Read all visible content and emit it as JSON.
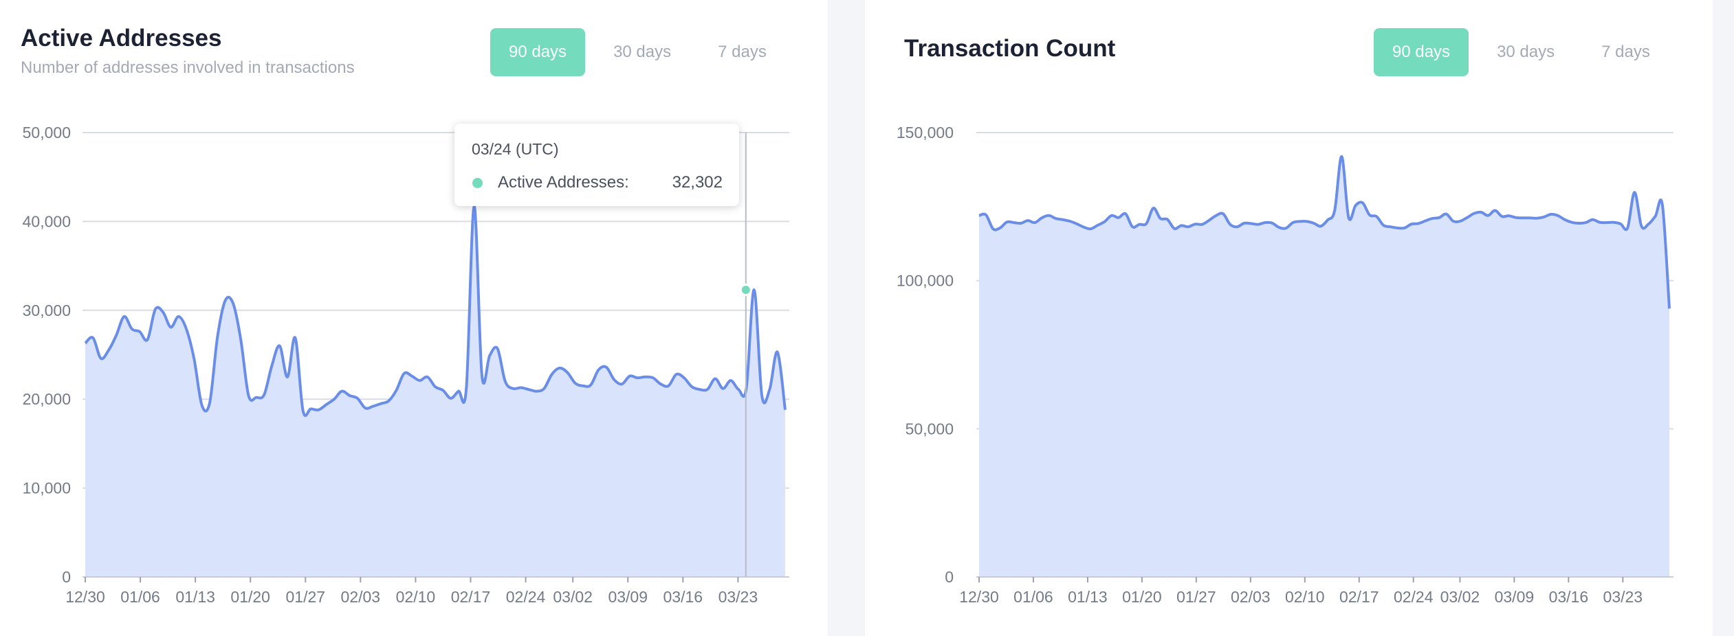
{
  "charts": {
    "active_addresses": {
      "title": "Active Addresses",
      "subtitle": "Number of addresses involved in transactions",
      "tooltip": {
        "date": "03/24 (UTC)",
        "series_label": "Active Addresses:",
        "value": "32,302"
      }
    },
    "transaction_count": {
      "title": "Transaction Count"
    }
  },
  "range_buttons": {
    "left": [
      {
        "label": "90 days",
        "active": true
      },
      {
        "label": "30 days",
        "active": false
      },
      {
        "label": "7 days",
        "active": false
      }
    ],
    "right": [
      {
        "label": "90 days",
        "active": true
      },
      {
        "label": "30 days",
        "active": false
      },
      {
        "label": "7 days",
        "active": false
      }
    ]
  },
  "colors": {
    "line": "#6a8ee8",
    "area": "#d9e3fb",
    "active_button": "#74dcbc",
    "grid": "#d9dce3",
    "highlight_dot": "#74dcbc"
  },
  "chart_data": [
    {
      "type": "area",
      "title": "Active Addresses",
      "subtitle": "Number of addresses involved in transactions",
      "x_start": "12/30",
      "x_end": "03/29",
      "x_ticks": [
        "12/30",
        "01/06",
        "01/13",
        "01/20",
        "01/27",
        "02/03",
        "02/10",
        "02/17",
        "02/24",
        "03/02",
        "03/09",
        "03/16",
        "03/23"
      ],
      "y_ticks": [
        "0",
        "10,000",
        "20,000",
        "30,000",
        "40,000",
        "50,000"
      ],
      "ylim": [
        0,
        50000
      ],
      "grid": true,
      "highlight": {
        "date": "03/24",
        "value": 32302
      },
      "series": [
        {
          "name": "Active Addresses",
          "values": [
            26300,
            26900,
            24600,
            25500,
            27200,
            29300,
            27900,
            27600,
            26700,
            30100,
            29800,
            28100,
            29300,
            27900,
            24500,
            19300,
            19600,
            27000,
            31100,
            30800,
            26700,
            20400,
            20200,
            20500,
            23800,
            26000,
            22500,
            26900,
            18700,
            18900,
            18800,
            19400,
            20000,
            20900,
            20400,
            20100,
            19000,
            19200,
            19500,
            19800,
            21000,
            22900,
            22600,
            22100,
            22500,
            21400,
            21000,
            20100,
            20900,
            21200,
            41700,
            22700,
            24900,
            25700,
            22000,
            21200,
            21300,
            21100,
            20900,
            21200,
            22800,
            23500,
            23000,
            21800,
            21500,
            21600,
            23300,
            23600,
            22200,
            21700,
            22600,
            22400,
            22500,
            22400,
            21700,
            21500,
            22800,
            22400,
            21400,
            21100,
            21100,
            22300,
            21200,
            22100,
            21100,
            21200,
            32300,
            20400,
            21100,
            25300,
            18800
          ]
        }
      ]
    },
    {
      "type": "area",
      "title": "Transaction Count",
      "x_start": "12/30",
      "x_end": "03/29",
      "x_ticks": [
        "12/30",
        "01/06",
        "01/13",
        "01/20",
        "01/27",
        "02/03",
        "02/10",
        "02/17",
        "02/24",
        "03/02",
        "03/09",
        "03/16",
        "03/23"
      ],
      "y_ticks": [
        "0",
        "50,000",
        "100,000",
        "150,000"
      ],
      "ylim": [
        0,
        150000
      ],
      "grid": true,
      "series": [
        {
          "name": "Transaction Count",
          "values": [
            122000,
            122200,
            117500,
            117800,
            119800,
            119600,
            119400,
            120300,
            119600,
            121200,
            122000,
            121000,
            120600,
            120100,
            119200,
            118100,
            117500,
            118700,
            119900,
            122000,
            121300,
            122600,
            118200,
            119000,
            119300,
            124500,
            121000,
            120700,
            117600,
            118600,
            118200,
            119100,
            119000,
            120400,
            122000,
            122600,
            119000,
            118200,
            119400,
            119300,
            119000,
            119600,
            119500,
            118000,
            117700,
            119600,
            120000,
            120000,
            119400,
            118400,
            120500,
            123700,
            141900,
            121300,
            125400,
            126300,
            122200,
            121700,
            118700,
            118200,
            117800,
            117800,
            119100,
            119300,
            120200,
            121000,
            121300,
            122500,
            120100,
            120100,
            121300,
            122700,
            123100,
            122000,
            123700,
            121700,
            121900,
            121300,
            121200,
            121200,
            121100,
            121500,
            122400,
            122000,
            120600,
            119700,
            119400,
            119600,
            120600,
            119700,
            119600,
            119700,
            119200,
            117800,
            129800,
            118400,
            119100,
            121800,
            125500,
            90600
          ]
        }
      ]
    }
  ]
}
